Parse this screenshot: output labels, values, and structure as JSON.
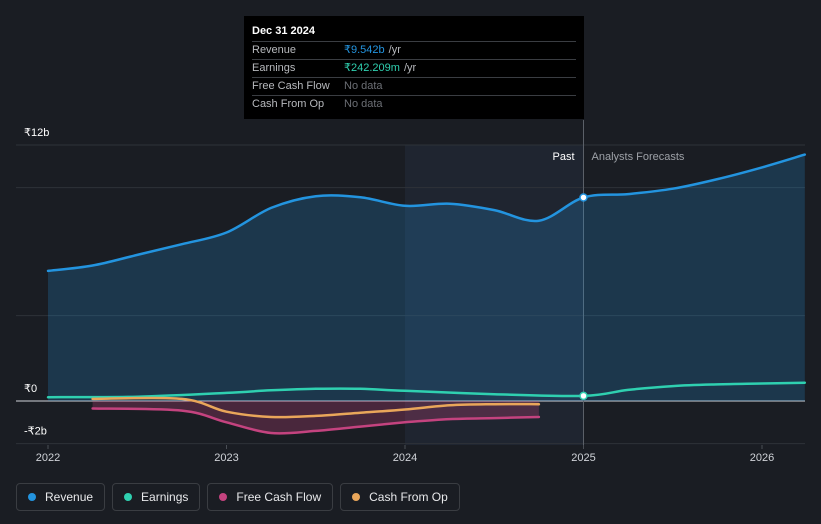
{
  "tooltip": {
    "date": "Dec 31 2024",
    "rows": [
      {
        "label": "Revenue",
        "value": "₹9.542b",
        "unit": "/yr"
      },
      {
        "label": "Earnings",
        "value": "₹242.209m",
        "unit": "/yr"
      },
      {
        "label": "Free Cash Flow",
        "value": "No data"
      },
      {
        "label": "Cash From Op",
        "value": "No data"
      }
    ]
  },
  "legend": [
    {
      "label": "Revenue",
      "color": "#2394df"
    },
    {
      "label": "Earnings",
      "color": "#2fd0b0"
    },
    {
      "label": "Free Cash Flow",
      "color": "#c4437f"
    },
    {
      "label": "Cash From Op",
      "color": "#e9a65a"
    }
  ],
  "chart_data": {
    "type": "line",
    "title": "",
    "x_unit": "year",
    "xlim": [
      2021.85,
      2026.24
    ],
    "ylim": [
      -2.0,
      12.0
    ],
    "y_tick_labels": [
      {
        "value": 12,
        "label": "₹12b"
      },
      {
        "value": 0,
        "label": "₹0"
      },
      {
        "value": -2,
        "label": "-₹2b"
      }
    ],
    "x_ticks": [
      {
        "value": 2022,
        "label": "2022"
      },
      {
        "value": 2023,
        "label": "2023"
      },
      {
        "value": 2024,
        "label": "2024"
      },
      {
        "value": 2025,
        "label": "2025"
      },
      {
        "value": 2026,
        "label": "2026"
      }
    ],
    "past_label": "Past",
    "forecast_label": "Analysts Forecasts",
    "divider_x": 2025.0,
    "highlight_start_x": 2024.0,
    "series": [
      {
        "name": "Revenue",
        "color": "#2394df",
        "fill": true,
        "points": [
          [
            2022.0,
            6.1
          ],
          [
            2022.25,
            6.35
          ],
          [
            2022.5,
            6.85
          ],
          [
            2022.75,
            7.35
          ],
          [
            2023.0,
            7.9
          ],
          [
            2023.25,
            9.05
          ],
          [
            2023.5,
            9.6
          ],
          [
            2023.75,
            9.55
          ],
          [
            2024.0,
            9.15
          ],
          [
            2024.25,
            9.25
          ],
          [
            2024.5,
            8.95
          ],
          [
            2024.75,
            8.45
          ],
          [
            2025.0,
            9.54
          ],
          [
            2025.25,
            9.7
          ],
          [
            2025.5,
            9.95
          ],
          [
            2025.75,
            10.4
          ],
          [
            2026.0,
            10.95
          ],
          [
            2026.24,
            11.55
          ]
        ]
      },
      {
        "name": "Earnings",
        "color": "#2fd0b0",
        "fill": false,
        "points": [
          [
            2022.0,
            0.18
          ],
          [
            2022.5,
            0.2
          ],
          [
            2023.0,
            0.38
          ],
          [
            2023.25,
            0.5
          ],
          [
            2023.5,
            0.57
          ],
          [
            2023.75,
            0.57
          ],
          [
            2024.0,
            0.48
          ],
          [
            2024.5,
            0.32
          ],
          [
            2025.0,
            0.24
          ],
          [
            2025.25,
            0.52
          ],
          [
            2025.5,
            0.7
          ],
          [
            2025.75,
            0.78
          ],
          [
            2026.0,
            0.82
          ],
          [
            2026.24,
            0.86
          ]
        ]
      },
      {
        "name": "Free Cash Flow",
        "color": "#c4437f",
        "fill": true,
        "points": [
          [
            2022.25,
            -0.35
          ],
          [
            2022.75,
            -0.45
          ],
          [
            2023.0,
            -1.0
          ],
          [
            2023.25,
            -1.5
          ],
          [
            2023.5,
            -1.4
          ],
          [
            2023.75,
            -1.2
          ],
          [
            2024.0,
            -1.0
          ],
          [
            2024.25,
            -0.85
          ],
          [
            2024.5,
            -0.8
          ],
          [
            2024.75,
            -0.75
          ]
        ]
      },
      {
        "name": "Cash From Op",
        "color": "#e9a65a",
        "fill": false,
        "points": [
          [
            2022.25,
            0.1
          ],
          [
            2022.75,
            0.1
          ],
          [
            2023.0,
            -0.5
          ],
          [
            2023.25,
            -0.75
          ],
          [
            2023.5,
            -0.7
          ],
          [
            2023.75,
            -0.55
          ],
          [
            2024.0,
            -0.4
          ],
          [
            2024.25,
            -0.2
          ],
          [
            2024.5,
            -0.15
          ],
          [
            2024.75,
            -0.15
          ]
        ]
      }
    ],
    "markers": [
      {
        "series": "Revenue",
        "x": 2025.0,
        "y": 9.54
      },
      {
        "series": "Earnings",
        "x": 2025.0,
        "y": 0.24
      }
    ]
  }
}
